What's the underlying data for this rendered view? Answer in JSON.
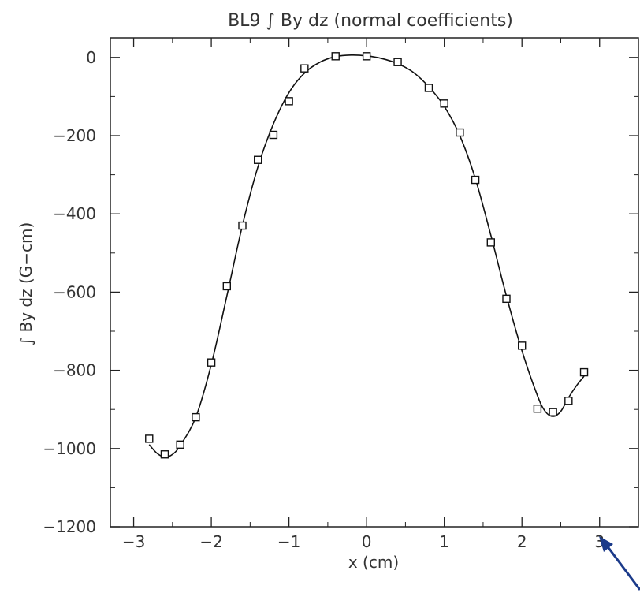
{
  "chart_data": {
    "type": "scatter",
    "title": "BL9 ∫ By dz (normal coefficients)",
    "xlabel": "x (cm)",
    "ylabel": "∫ By dz (G−cm)",
    "xlim": [
      -3.3,
      3.5
    ],
    "ylim": [
      -1200,
      50
    ],
    "xticks": [
      -3,
      -2,
      -1,
      0,
      1,
      2,
      3
    ],
    "yticks": [
      0,
      -200,
      -400,
      -600,
      -800,
      -1000,
      -1200
    ],
    "series": [
      {
        "kind": "markers",
        "marker": "open-square",
        "x": [
          -2.8,
          -2.6,
          -2.4,
          -2.2,
          -2.0,
          -1.8,
          -1.6,
          -1.4,
          -1.2,
          -1.0,
          -0.8,
          -0.4,
          0.0,
          0.4,
          0.8,
          1.0,
          1.2,
          1.4,
          1.6,
          1.8,
          2.0,
          2.2,
          2.4,
          2.6,
          2.8
        ],
        "y": [
          -975,
          -1015,
          -990,
          -920,
          -780,
          -585,
          -430,
          -262,
          -198,
          -112,
          -28,
          3,
          3,
          -12,
          -78,
          -118,
          -192,
          -313,
          -473,
          -617,
          -737,
          -898,
          -907,
          -878,
          -805
        ]
      },
      {
        "kind": "fit-curve",
        "x": [
          -2.8,
          -2.7,
          -2.6,
          -2.5,
          -2.4,
          -2.2,
          -2.0,
          -1.8,
          -1.6,
          -1.4,
          -1.2,
          -1.0,
          -0.8,
          -0.6,
          -0.4,
          -0.2,
          0.0,
          0.2,
          0.4,
          0.6,
          0.8,
          1.0,
          1.2,
          1.4,
          1.6,
          1.8,
          2.0,
          2.2,
          2.3,
          2.4,
          2.5,
          2.6,
          2.7,
          2.8
        ],
        "y": [
          -990,
          -1012,
          -1022,
          -1015,
          -992,
          -920,
          -785,
          -610,
          -430,
          -280,
          -170,
          -90,
          -40,
          -12,
          2,
          6,
          4,
          -3,
          -16,
          -38,
          -75,
          -125,
          -200,
          -310,
          -455,
          -610,
          -750,
          -865,
          -905,
          -918,
          -905,
          -870,
          -840,
          -815
        ]
      }
    ],
    "grid": false
  }
}
